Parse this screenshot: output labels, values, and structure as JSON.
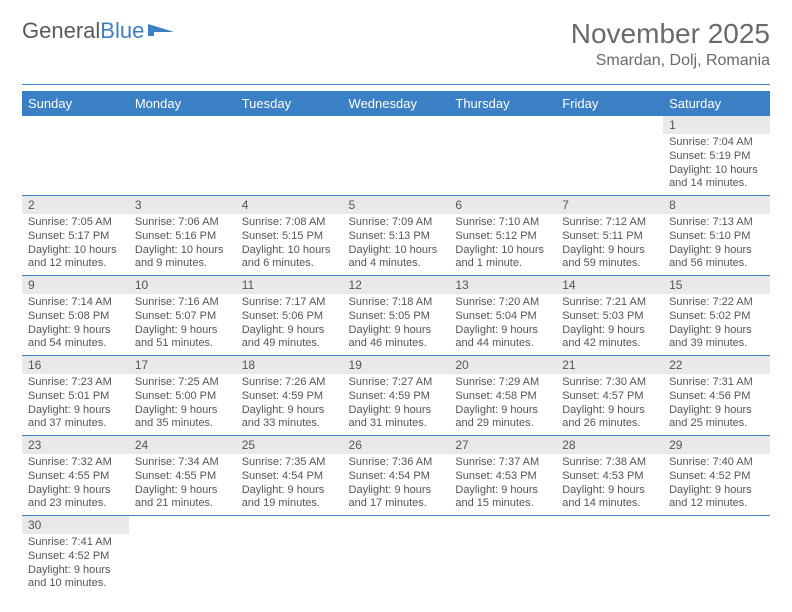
{
  "brand": {
    "part1": "General",
    "part2": "Blue"
  },
  "title": "November 2025",
  "location": "Smardan, Dolj, Romania",
  "colors": {
    "header_bg": "#3b7fc4",
    "header_text": "#ffffff",
    "daynum_bg": "#e9e9e9",
    "rule": "#3b7fc4",
    "text": "#555555"
  },
  "weekdays": [
    "Sunday",
    "Monday",
    "Tuesday",
    "Wednesday",
    "Thursday",
    "Friday",
    "Saturday"
  ],
  "weeks": [
    [
      null,
      null,
      null,
      null,
      null,
      null,
      {
        "n": "1",
        "sr": "Sunrise: 7:04 AM",
        "ss": "Sunset: 5:19 PM",
        "dl": "Daylight: 10 hours and 14 minutes."
      }
    ],
    [
      {
        "n": "2",
        "sr": "Sunrise: 7:05 AM",
        "ss": "Sunset: 5:17 PM",
        "dl": "Daylight: 10 hours and 12 minutes."
      },
      {
        "n": "3",
        "sr": "Sunrise: 7:06 AM",
        "ss": "Sunset: 5:16 PM",
        "dl": "Daylight: 10 hours and 9 minutes."
      },
      {
        "n": "4",
        "sr": "Sunrise: 7:08 AM",
        "ss": "Sunset: 5:15 PM",
        "dl": "Daylight: 10 hours and 6 minutes."
      },
      {
        "n": "5",
        "sr": "Sunrise: 7:09 AM",
        "ss": "Sunset: 5:13 PM",
        "dl": "Daylight: 10 hours and 4 minutes."
      },
      {
        "n": "6",
        "sr": "Sunrise: 7:10 AM",
        "ss": "Sunset: 5:12 PM",
        "dl": "Daylight: 10 hours and 1 minute."
      },
      {
        "n": "7",
        "sr": "Sunrise: 7:12 AM",
        "ss": "Sunset: 5:11 PM",
        "dl": "Daylight: 9 hours and 59 minutes."
      },
      {
        "n": "8",
        "sr": "Sunrise: 7:13 AM",
        "ss": "Sunset: 5:10 PM",
        "dl": "Daylight: 9 hours and 56 minutes."
      }
    ],
    [
      {
        "n": "9",
        "sr": "Sunrise: 7:14 AM",
        "ss": "Sunset: 5:08 PM",
        "dl": "Daylight: 9 hours and 54 minutes."
      },
      {
        "n": "10",
        "sr": "Sunrise: 7:16 AM",
        "ss": "Sunset: 5:07 PM",
        "dl": "Daylight: 9 hours and 51 minutes."
      },
      {
        "n": "11",
        "sr": "Sunrise: 7:17 AM",
        "ss": "Sunset: 5:06 PM",
        "dl": "Daylight: 9 hours and 49 minutes."
      },
      {
        "n": "12",
        "sr": "Sunrise: 7:18 AM",
        "ss": "Sunset: 5:05 PM",
        "dl": "Daylight: 9 hours and 46 minutes."
      },
      {
        "n": "13",
        "sr": "Sunrise: 7:20 AM",
        "ss": "Sunset: 5:04 PM",
        "dl": "Daylight: 9 hours and 44 minutes."
      },
      {
        "n": "14",
        "sr": "Sunrise: 7:21 AM",
        "ss": "Sunset: 5:03 PM",
        "dl": "Daylight: 9 hours and 42 minutes."
      },
      {
        "n": "15",
        "sr": "Sunrise: 7:22 AM",
        "ss": "Sunset: 5:02 PM",
        "dl": "Daylight: 9 hours and 39 minutes."
      }
    ],
    [
      {
        "n": "16",
        "sr": "Sunrise: 7:23 AM",
        "ss": "Sunset: 5:01 PM",
        "dl": "Daylight: 9 hours and 37 minutes."
      },
      {
        "n": "17",
        "sr": "Sunrise: 7:25 AM",
        "ss": "Sunset: 5:00 PM",
        "dl": "Daylight: 9 hours and 35 minutes."
      },
      {
        "n": "18",
        "sr": "Sunrise: 7:26 AM",
        "ss": "Sunset: 4:59 PM",
        "dl": "Daylight: 9 hours and 33 minutes."
      },
      {
        "n": "19",
        "sr": "Sunrise: 7:27 AM",
        "ss": "Sunset: 4:59 PM",
        "dl": "Daylight: 9 hours and 31 minutes."
      },
      {
        "n": "20",
        "sr": "Sunrise: 7:29 AM",
        "ss": "Sunset: 4:58 PM",
        "dl": "Daylight: 9 hours and 29 minutes."
      },
      {
        "n": "21",
        "sr": "Sunrise: 7:30 AM",
        "ss": "Sunset: 4:57 PM",
        "dl": "Daylight: 9 hours and 26 minutes."
      },
      {
        "n": "22",
        "sr": "Sunrise: 7:31 AM",
        "ss": "Sunset: 4:56 PM",
        "dl": "Daylight: 9 hours and 25 minutes."
      }
    ],
    [
      {
        "n": "23",
        "sr": "Sunrise: 7:32 AM",
        "ss": "Sunset: 4:55 PM",
        "dl": "Daylight: 9 hours and 23 minutes."
      },
      {
        "n": "24",
        "sr": "Sunrise: 7:34 AM",
        "ss": "Sunset: 4:55 PM",
        "dl": "Daylight: 9 hours and 21 minutes."
      },
      {
        "n": "25",
        "sr": "Sunrise: 7:35 AM",
        "ss": "Sunset: 4:54 PM",
        "dl": "Daylight: 9 hours and 19 minutes."
      },
      {
        "n": "26",
        "sr": "Sunrise: 7:36 AM",
        "ss": "Sunset: 4:54 PM",
        "dl": "Daylight: 9 hours and 17 minutes."
      },
      {
        "n": "27",
        "sr": "Sunrise: 7:37 AM",
        "ss": "Sunset: 4:53 PM",
        "dl": "Daylight: 9 hours and 15 minutes."
      },
      {
        "n": "28",
        "sr": "Sunrise: 7:38 AM",
        "ss": "Sunset: 4:53 PM",
        "dl": "Daylight: 9 hours and 14 minutes."
      },
      {
        "n": "29",
        "sr": "Sunrise: 7:40 AM",
        "ss": "Sunset: 4:52 PM",
        "dl": "Daylight: 9 hours and 12 minutes."
      }
    ],
    [
      {
        "n": "30",
        "sr": "Sunrise: 7:41 AM",
        "ss": "Sunset: 4:52 PM",
        "dl": "Daylight: 9 hours and 10 minutes."
      },
      null,
      null,
      null,
      null,
      null,
      null
    ]
  ]
}
